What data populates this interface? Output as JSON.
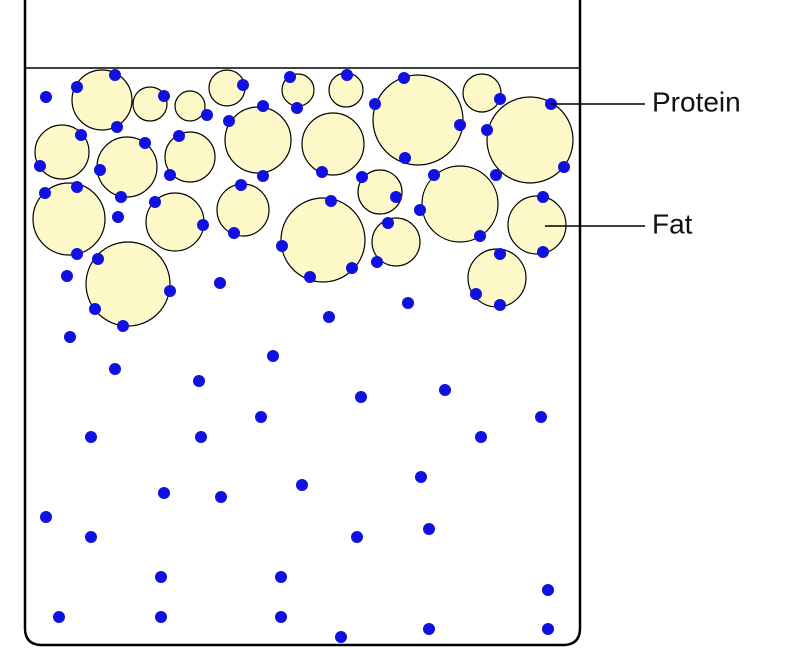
{
  "labels": {
    "protein": "Protein",
    "fat": "Fat"
  }
}
